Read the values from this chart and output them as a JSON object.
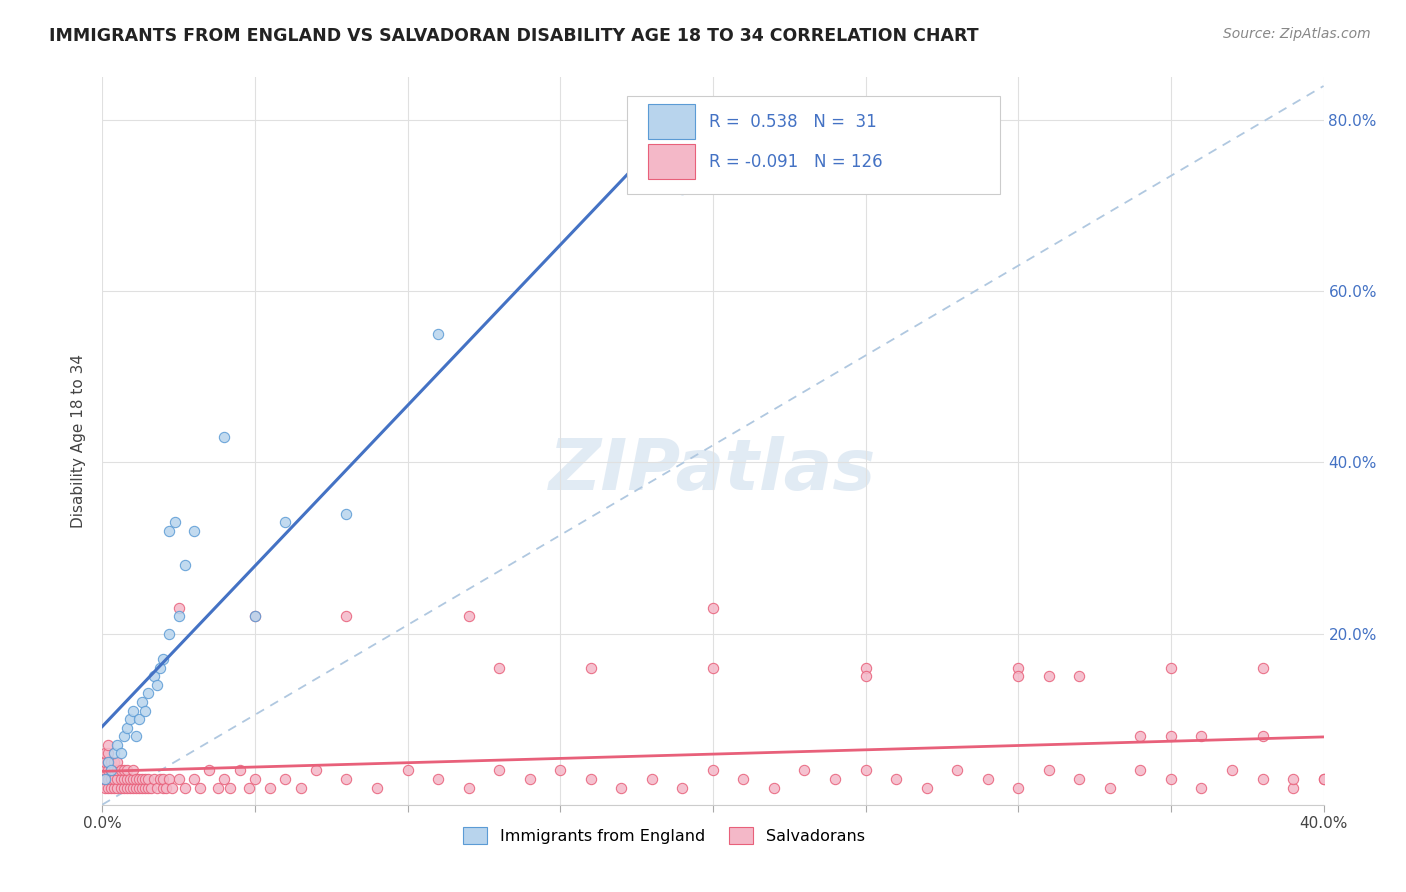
{
  "title": "IMMIGRANTS FROM ENGLAND VS SALVADORAN DISABILITY AGE 18 TO 34 CORRELATION CHART",
  "source": "Source: ZipAtlas.com",
  "ylabel": "Disability Age 18 to 34",
  "xlim": [
    0.0,
    0.4
  ],
  "ylim": [
    0.0,
    0.85
  ],
  "legend_england_R": "0.538",
  "legend_england_N": "31",
  "legend_salvador_R": "-0.091",
  "legend_salvador_N": "126",
  "england_fill": "#b8d4ed",
  "england_edge": "#5b9bd5",
  "salvador_fill": "#f4b8c8",
  "salvador_edge": "#e8607a",
  "england_line": "#4472c4",
  "salvador_line": "#e8607a",
  "diagonal_color": "#b0c8e0",
  "watermark": "ZIPatlas",
  "england_x": [
    0.001,
    0.002,
    0.003,
    0.004,
    0.005,
    0.006,
    0.007,
    0.008,
    0.009,
    0.01,
    0.011,
    0.012,
    0.013,
    0.014,
    0.015,
    0.017,
    0.018,
    0.019,
    0.02,
    0.022,
    0.025,
    0.027,
    0.03,
    0.04,
    0.05,
    0.06,
    0.08,
    0.11,
    0.19,
    0.022,
    0.024
  ],
  "england_y": [
    0.03,
    0.05,
    0.04,
    0.06,
    0.07,
    0.06,
    0.08,
    0.09,
    0.1,
    0.11,
    0.08,
    0.1,
    0.12,
    0.11,
    0.13,
    0.15,
    0.14,
    0.16,
    0.17,
    0.2,
    0.22,
    0.28,
    0.32,
    0.43,
    0.22,
    0.33,
    0.34,
    0.55,
    0.72,
    0.32,
    0.33
  ],
  "salvador_x": [
    0.001,
    0.001,
    0.001,
    0.001,
    0.001,
    0.002,
    0.002,
    0.002,
    0.002,
    0.002,
    0.002,
    0.003,
    0.003,
    0.003,
    0.003,
    0.004,
    0.004,
    0.004,
    0.004,
    0.005,
    0.005,
    0.005,
    0.005,
    0.006,
    0.006,
    0.006,
    0.007,
    0.007,
    0.007,
    0.008,
    0.008,
    0.008,
    0.009,
    0.009,
    0.01,
    0.01,
    0.01,
    0.011,
    0.011,
    0.012,
    0.012,
    0.013,
    0.013,
    0.014,
    0.014,
    0.015,
    0.015,
    0.016,
    0.017,
    0.018,
    0.019,
    0.02,
    0.02,
    0.021,
    0.022,
    0.023,
    0.025,
    0.027,
    0.03,
    0.032,
    0.035,
    0.038,
    0.04,
    0.042,
    0.045,
    0.048,
    0.05,
    0.055,
    0.06,
    0.065,
    0.07,
    0.08,
    0.09,
    0.1,
    0.11,
    0.12,
    0.13,
    0.14,
    0.15,
    0.16,
    0.17,
    0.18,
    0.19,
    0.2,
    0.21,
    0.22,
    0.23,
    0.24,
    0.25,
    0.26,
    0.27,
    0.28,
    0.29,
    0.3,
    0.31,
    0.32,
    0.33,
    0.34,
    0.35,
    0.36,
    0.37,
    0.38,
    0.39,
    0.4,
    0.13,
    0.16,
    0.2,
    0.25,
    0.3,
    0.35,
    0.38,
    0.39,
    0.4,
    0.025,
    0.05,
    0.08,
    0.12,
    0.2,
    0.25,
    0.3,
    0.31,
    0.32,
    0.34,
    0.35,
    0.36,
    0.38
  ],
  "salvador_y": [
    0.02,
    0.03,
    0.04,
    0.05,
    0.06,
    0.02,
    0.03,
    0.04,
    0.05,
    0.06,
    0.07,
    0.02,
    0.03,
    0.04,
    0.05,
    0.02,
    0.03,
    0.04,
    0.05,
    0.02,
    0.03,
    0.04,
    0.05,
    0.02,
    0.03,
    0.04,
    0.02,
    0.03,
    0.04,
    0.02,
    0.03,
    0.04,
    0.02,
    0.03,
    0.02,
    0.03,
    0.04,
    0.02,
    0.03,
    0.02,
    0.03,
    0.02,
    0.03,
    0.02,
    0.03,
    0.02,
    0.03,
    0.02,
    0.03,
    0.02,
    0.03,
    0.02,
    0.03,
    0.02,
    0.03,
    0.02,
    0.03,
    0.02,
    0.03,
    0.02,
    0.04,
    0.02,
    0.03,
    0.02,
    0.04,
    0.02,
    0.03,
    0.02,
    0.03,
    0.02,
    0.04,
    0.03,
    0.02,
    0.04,
    0.03,
    0.02,
    0.04,
    0.03,
    0.04,
    0.03,
    0.02,
    0.03,
    0.02,
    0.04,
    0.03,
    0.02,
    0.04,
    0.03,
    0.04,
    0.03,
    0.02,
    0.04,
    0.03,
    0.02,
    0.04,
    0.03,
    0.02,
    0.04,
    0.03,
    0.02,
    0.04,
    0.03,
    0.02,
    0.03,
    0.16,
    0.16,
    0.16,
    0.16,
    0.16,
    0.16,
    0.16,
    0.03,
    0.03,
    0.23,
    0.22,
    0.22,
    0.22,
    0.23,
    0.15,
    0.15,
    0.15,
    0.15,
    0.08,
    0.08,
    0.08,
    0.08
  ]
}
